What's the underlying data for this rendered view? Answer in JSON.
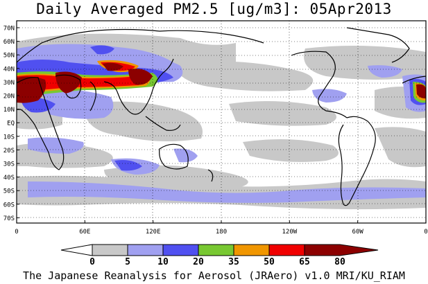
{
  "title": "Daily Averaged PM2.5 [ug/m3]: 05Apr2013",
  "footer": "The Japanese Reanalysis for Aerosol (JRAero) v1.0 MRI/KU_RIAM",
  "lat_ticks": [
    "70N",
    "60N",
    "50N",
    "40N",
    "30N",
    "20N",
    "10N",
    "EQ",
    "10S",
    "20S",
    "30S",
    "40S",
    "50S",
    "60S",
    "70S"
  ],
  "lon_ticks": [
    "0",
    "60E",
    "120E",
    "180",
    "120W",
    "60W",
    "0"
  ],
  "colorbar": {
    "levels": [
      "0",
      "5",
      "10",
      "20",
      "35",
      "50",
      "65",
      "80"
    ],
    "colors": [
      "#ffffff",
      "#c8c8c8",
      "#a0a0f0",
      "#5050f0",
      "#78c832",
      "#f09600",
      "#f00000",
      "#8c0000"
    ]
  },
  "legend_colors": {
    "under5": "#ffffff",
    "c5_10": "#c8c8c8",
    "c10_20": "#a0a0f0",
    "c20_35": "#5050f0",
    "c35_50": "#78c832",
    "c50_65": "#f09600",
    "c65_80": "#f00000",
    "over80": "#8c0000"
  }
}
